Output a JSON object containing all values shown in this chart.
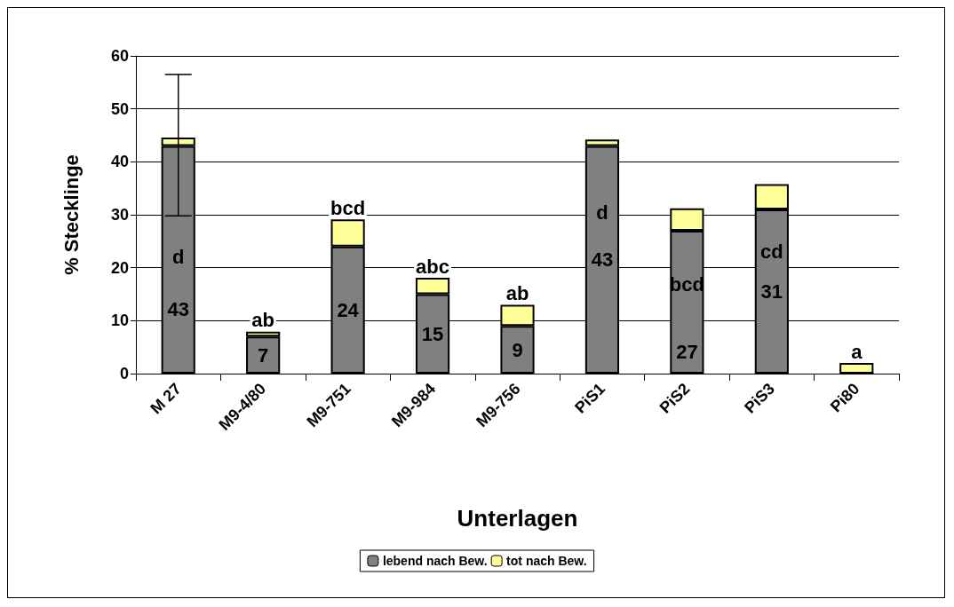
{
  "chart_data": {
    "type": "bar",
    "stacked": true,
    "xlabel": "Unterlagen",
    "ylabel": "% Stecklinge",
    "categories": [
      "M 27",
      "M9-4/80",
      "M9-751",
      "M9-984",
      "M9-756",
      "PiS1",
      "PiS2",
      "PiS3",
      "Pi80"
    ],
    "series": [
      {
        "name": "lebend nach Bew.",
        "color": "#808080",
        "values": [
          43,
          7,
          24,
          15,
          9,
          43,
          27,
          31,
          0
        ],
        "value_labels": [
          "43",
          "7",
          "24",
          "15",
          "9",
          "43",
          "27",
          "31",
          null
        ],
        "errors": [
          [
            29.8,
            56.5
          ],
          null,
          null,
          null,
          null,
          null,
          null,
          null,
          null
        ]
      },
      {
        "name": "tot nach Bew.",
        "color": "#ffff99",
        "values": [
          1.6,
          0.9,
          5.1,
          3.1,
          4.0,
          1.2,
          4.2,
          4.8,
          2.0
        ]
      }
    ],
    "annotations": [
      {
        "text": "d",
        "x": "M 27",
        "y": 22
      },
      {
        "text": "ab",
        "x": "M9-4/80",
        "y": 7.9
      },
      {
        "text": "bcd",
        "x": "M9-751",
        "y": 29.1
      },
      {
        "text": "abc",
        "x": "M9-984",
        "y": 18.1
      },
      {
        "text": "ab",
        "x": "M9-756",
        "y": 13
      },
      {
        "text": "d",
        "x": "PiS1",
        "y": 30.4
      },
      {
        "text": "bcd",
        "x": "PiS2",
        "y": 16.9
      },
      {
        "text": "cd",
        "x": "PiS3",
        "y": 23
      },
      {
        "text": "a",
        "x": "Pi80",
        "y": 2
      }
    ],
    "ylim": [
      0,
      60
    ],
    "yticks": [
      0,
      10,
      20,
      30,
      40,
      50,
      60
    ],
    "grid": "y",
    "legend": "bottom"
  }
}
